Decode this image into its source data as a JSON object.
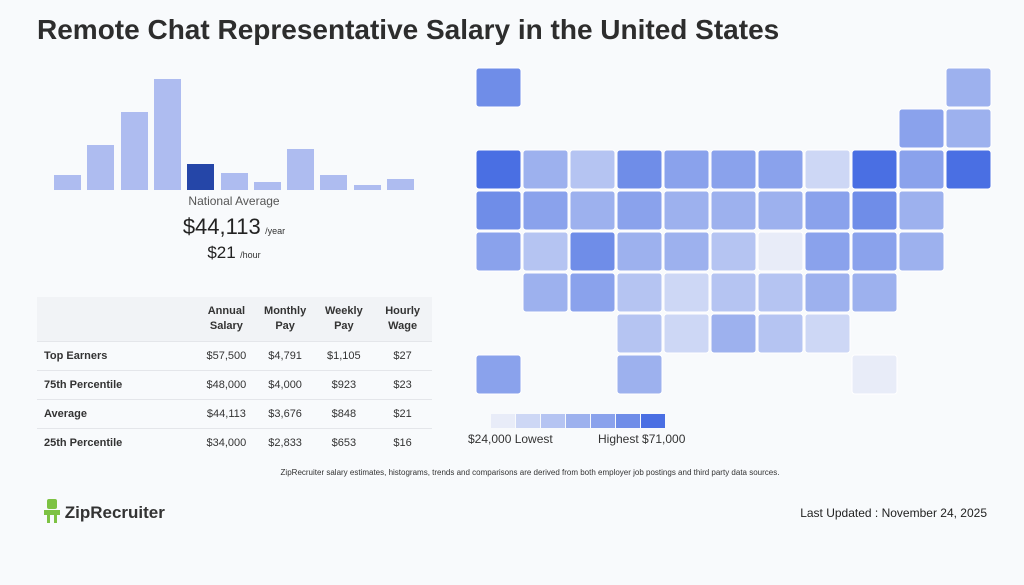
{
  "title": "Remote Chat Representative Salary in the United States",
  "histogram": {
    "values": [
      15,
      45,
      78,
      111,
      26,
      17,
      8,
      41,
      15,
      5,
      11
    ],
    "color": "#aebcf0",
    "highlight_index": 4,
    "highlight_color": "#2546a8",
    "caption": "National Average"
  },
  "summary": {
    "annual": "$44,113",
    "annual_unit": "/year",
    "hourly": "$21",
    "hourly_unit": "/hour"
  },
  "table": {
    "header": [
      "Annual Salary",
      "Monthly Pay",
      "Weekly Pay",
      "Hourly Wage"
    ],
    "rows": [
      {
        "label": "Top Earners",
        "cells": [
          "$57,500",
          "$4,791",
          "$1,105",
          "$27"
        ]
      },
      {
        "label": "75th Percentile",
        "cells": [
          "$48,000",
          "$4,000",
          "$923",
          "$23"
        ]
      },
      {
        "label": "Average",
        "cells": [
          "$44,113",
          "$3,676",
          "$848",
          "$21"
        ]
      },
      {
        "label": "25th Percentile",
        "cells": [
          "$34,000",
          "$2,833",
          "$653",
          "$16"
        ]
      }
    ]
  },
  "map_legend": {
    "colors": [
      "#e8ecf8",
      "#cdd7f5",
      "#b5c4f2",
      "#9db1ee",
      "#8aa2ec",
      "#6f8de8",
      "#4a6fe3"
    ],
    "low": "$24,000 Lowest",
    "high": "Highest $71,000"
  },
  "footnote": "ZipRecruiter salary estimates, histograms, trends and comparisons are derived from both employer job postings and third party data sources.",
  "logo": "ZipRecruiter",
  "updated": "Last Updated : November 24, 2025"
}
